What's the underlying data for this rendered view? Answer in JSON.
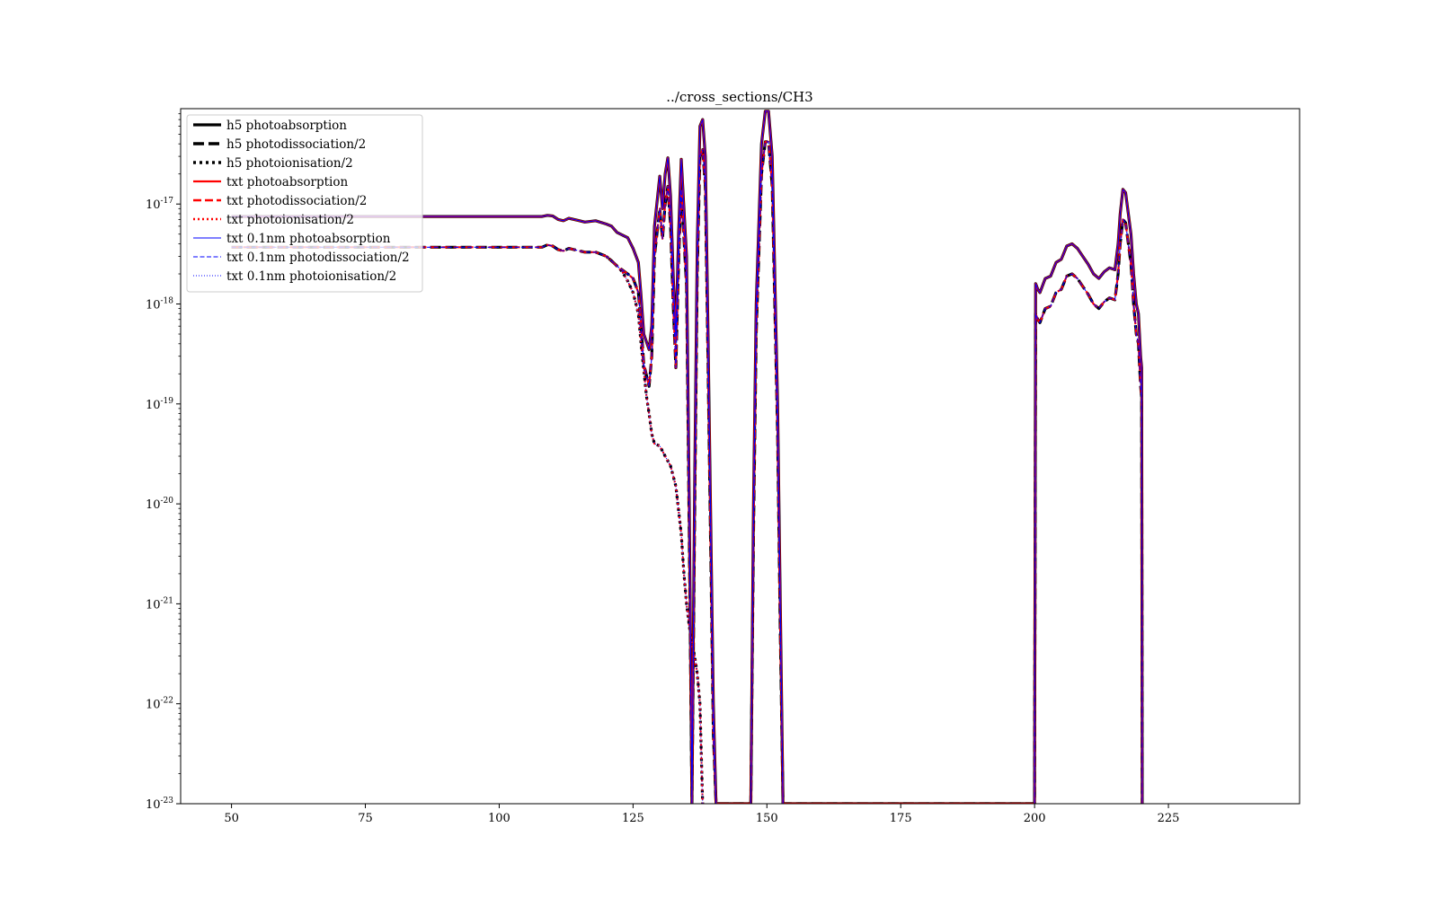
{
  "chart_data": {
    "type": "line",
    "title": "../cross_sections/CH3",
    "xlabel": "",
    "ylabel": "",
    "xlim": [
      40.5,
      249.5
    ],
    "ylim": [
      1e-23,
      9e-17
    ],
    "yscale": "log",
    "grid": false,
    "legend_position": "top-left",
    "x_ticks": [
      {
        "value": 50,
        "label": "50"
      },
      {
        "value": 75,
        "label": "75"
      },
      {
        "value": 100,
        "label": "100"
      },
      {
        "value": 125,
        "label": "125"
      },
      {
        "value": 150,
        "label": "150"
      },
      {
        "value": 175,
        "label": "175"
      },
      {
        "value": 200,
        "label": "200"
      },
      {
        "value": 225,
        "label": "225"
      }
    ],
    "y_ticks": [
      {
        "exp": -17,
        "base": "10",
        "sup": "-17"
      },
      {
        "exp": -18,
        "base": "10",
        "sup": "-18"
      },
      {
        "exp": -19,
        "base": "10",
        "sup": "-19"
      },
      {
        "exp": -20,
        "base": "10",
        "sup": "-20"
      },
      {
        "exp": -21,
        "base": "10",
        "sup": "-21"
      },
      {
        "exp": -22,
        "base": "10",
        "sup": "-22"
      },
      {
        "exp": -23,
        "base": "10",
        "sup": "-23"
      }
    ],
    "curves": {
      "absorption": {
        "x": [
          50,
          108,
          109,
          110,
          111,
          112,
          113,
          115,
          116,
          118,
          120,
          121,
          122,
          124,
          125,
          126,
          126.5,
          127,
          128,
          128.5,
          129,
          130,
          130.5,
          131,
          131.5,
          132,
          132.5,
          133,
          133.5,
          134,
          135,
          135.5,
          136,
          136.5,
          137,
          137.5,
          138,
          138.5,
          139,
          140,
          140.5,
          141,
          147,
          147.5,
          148,
          149,
          149.7,
          150.3,
          151,
          152,
          152.5,
          153,
          200,
          200.2,
          200.6,
          201,
          202,
          203,
          204,
          205,
          206,
          207,
          208,
          209,
          210,
          211,
          212,
          213,
          214,
          215,
          215.6,
          216,
          216.5,
          217,
          218,
          218.5,
          219,
          219.4,
          219.8,
          220,
          220.1
        ],
        "y": [
          7.5e-18,
          7.5e-18,
          7.7e-18,
          7.6e-18,
          7e-18,
          6.8e-18,
          7.2e-18,
          6.8e-18,
          6.6e-18,
          6.8e-18,
          6.3e-18,
          6e-18,
          5.2e-18,
          4.6e-18,
          3.6e-18,
          2.6e-18,
          1.2e-18,
          5e-19,
          3.5e-19,
          6e-19,
          6e-18,
          1.9e-17,
          9e-18,
          2e-17,
          2.9e-17,
          1.2e-17,
          2e-18,
          4.6e-19,
          5e-18,
          2.8e-17,
          3e-18,
          1e-20,
          1e-23,
          1.5e-20,
          4e-18,
          6e-17,
          7e-17,
          3e-17,
          5e-19,
          1e-22,
          1e-23,
          1e-23,
          1e-23,
          1e-20,
          1e-18,
          4e-17,
          8.5e-17,
          8.5e-17,
          3e-17,
          1e-19,
          1e-21,
          1e-23,
          1e-23,
          1.6e-18,
          1.4e-18,
          1.3e-18,
          1.8e-18,
          1.9e-18,
          2.6e-18,
          2.8e-18,
          3.8e-18,
          4e-18,
          3.6e-18,
          3e-18,
          2.5e-18,
          2e-18,
          1.8e-18,
          2.1e-18,
          2.3e-18,
          2.2e-18,
          4e-18,
          8e-18,
          1.4e-17,
          1.3e-17,
          5e-18,
          2e-18,
          1e-18,
          8e-19,
          3e-19,
          2.3e-19,
          1e-23
        ]
      },
      "dissociation_ionisation": {
        "x": [
          50,
          108,
          109,
          110,
          111,
          112,
          113,
          115,
          116,
          118,
          120,
          121,
          122,
          124,
          125,
          126,
          126.5,
          127,
          128,
          128.5,
          129,
          130,
          130.5,
          131,
          131.5,
          132,
          132.5,
          133,
          133.5,
          134,
          135,
          135.5,
          136,
          136.5,
          137,
          137.5,
          138,
          138.5,
          139,
          140,
          140.5,
          141,
          147,
          147.5,
          148,
          149,
          149.7,
          150.3,
          151,
          152,
          152.5,
          153,
          200,
          200.2,
          200.6,
          201,
          202,
          203,
          204,
          205,
          206,
          207,
          208,
          209,
          210,
          211,
          212,
          213,
          214,
          215,
          215.6,
          216,
          216.5,
          217,
          218,
          218.5,
          219,
          219.4,
          219.8,
          220,
          220.1
        ],
        "y": [
          3.7e-18,
          3.7e-18,
          3.9e-18,
          3.8e-18,
          3.5e-18,
          3.4e-18,
          3.6e-18,
          3.4e-18,
          3.3e-18,
          3.3e-18,
          3e-18,
          2.7e-18,
          2.4e-18,
          2e-18,
          1.8e-18,
          1.3e-18,
          6e-19,
          2.5e-19,
          1.5e-19,
          3e-19,
          3e-18,
          9e-18,
          4.5e-18,
          1e-17,
          1.5e-17,
          6e-18,
          1e-18,
          2.3e-19,
          2.5e-18,
          1.4e-17,
          1.5e-18,
          5e-21,
          1e-23,
          7e-21,
          2e-18,
          3e-17,
          3.5e-17,
          1.5e-17,
          2.5e-19,
          5e-23,
          1e-23,
          1e-23,
          1e-23,
          5e-21,
          5e-19,
          2e-17,
          4.2e-17,
          4.2e-17,
          1.5e-17,
          5e-20,
          5e-22,
          1e-23,
          1e-23,
          8e-19,
          7e-19,
          6.5e-19,
          9e-19,
          9.5e-19,
          1.3e-18,
          1.4e-18,
          1.9e-18,
          2e-18,
          1.8e-18,
          1.5e-18,
          1.25e-18,
          1e-18,
          9e-19,
          1.05e-18,
          1.15e-18,
          1.1e-18,
          2e-18,
          4e-18,
          7e-18,
          6.5e-18,
          2.5e-18,
          1e-18,
          5e-19,
          4e-19,
          1.5e-19,
          1.15e-19,
          1e-23
        ]
      },
      "ionisation_tail": {
        "x": [
          120,
          121,
          122,
          123,
          124,
          125,
          126,
          126.5,
          127,
          127.5,
          128,
          128.5,
          129,
          130,
          131,
          132,
          133,
          134,
          134.5,
          135,
          135.5,
          136,
          136.5,
          137,
          137.5,
          138
        ],
        "y": [
          3e-18,
          2.7e-18,
          2.4e-18,
          2.1e-18,
          1.7e-18,
          1.3e-18,
          8e-19,
          4e-19,
          2.2e-19,
          1.2e-19,
          8e-20,
          5e-20,
          4e-20,
          3.8e-20,
          3e-20,
          2.4e-20,
          1.5e-20,
          5e-21,
          2e-21,
          1e-21,
          6e-22,
          4e-22,
          3e-22,
          2e-22,
          1e-22,
          1e-23
        ]
      }
    },
    "series": [
      {
        "name": "h5 photoabsorption",
        "curve": "absorption",
        "color": "#000000",
        "width": 3.2,
        "dash": "",
        "legend_dash": "",
        "legend_width": 3.2
      },
      {
        "name": "h5 photodissociation/2",
        "curve": "dissociation_ionisation",
        "color": "#000000",
        "width": 3.2,
        "dash": "12 5",
        "legend_dash": "12 5",
        "legend_width": 3.6
      },
      {
        "name": "h5 photoionisation/2",
        "curve": "ionisation_tail",
        "color": "#000000",
        "width": 3.2,
        "dash": "3 4",
        "legend_dash": "3 4",
        "legend_width": 3.6
      },
      {
        "name": "txt photoabsorption",
        "curve": "absorption",
        "color": "#ff0000",
        "width": 2.2,
        "dash": "",
        "legend_dash": "",
        "legend_width": 2.2
      },
      {
        "name": "txt photodissociation/2",
        "curve": "dissociation_ionisation",
        "color": "#ff0000",
        "width": 2.2,
        "dash": "9 4",
        "legend_dash": "9 4",
        "legend_width": 2.4
      },
      {
        "name": "txt photoionisation/2",
        "curve": "ionisation_tail",
        "color": "#ff0000",
        "width": 2.2,
        "dash": "2 3",
        "legend_dash": "2 3",
        "legend_width": 2.4
      },
      {
        "name": "txt 0.1nm photoabsorption",
        "curve": "absorption",
        "color": "#0000ff",
        "width": 1.1,
        "dash": "",
        "legend_dash": "",
        "legend_width": 1.1
      },
      {
        "name": "txt 0.1nm photodissociation/2",
        "curve": "dissociation_ionisation",
        "color": "#0000ff",
        "width": 1.1,
        "dash": "5 2.5",
        "legend_dash": "5 2.5",
        "legend_width": 1.1
      },
      {
        "name": "txt 0.1nm photoionisation/2",
        "curve": "ionisation_tail",
        "color": "#0000ff",
        "width": 1.1,
        "dash": "1 2",
        "legend_dash": "1 2",
        "legend_width": 1.1
      }
    ]
  }
}
